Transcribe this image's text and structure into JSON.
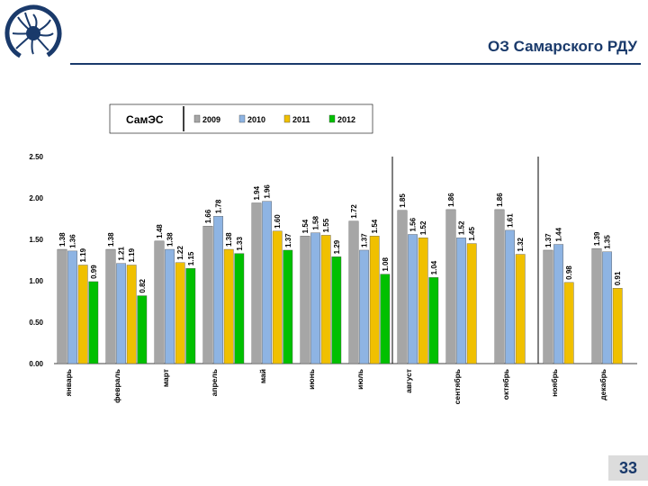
{
  "header": {
    "title": "ОЗ Самарского РДУ"
  },
  "page": {
    "number": "33"
  },
  "colors": {
    "title": "#1a3a6b",
    "s2009": "#a6a6a6",
    "s2010": "#8eb4e3",
    "s2011": "#f0c000",
    "s2012": "#00c000"
  },
  "icons": {
    "logo": "sun-logo-icon"
  },
  "chart_data": {
    "type": "bar",
    "title": "СамЭС",
    "ylim": [
      0,
      2.5
    ],
    "yticks": [
      "0.00",
      "0.50",
      "1.00",
      "1.50",
      "2.00",
      "2.50"
    ],
    "grid": false,
    "legend_position": "top",
    "categories": [
      "январь",
      "февраль",
      "март",
      "апрель",
      "май",
      "июнь",
      "июль",
      "август",
      "сентябрь",
      "октябрь",
      "ноябрь",
      "декабрь"
    ],
    "series": [
      {
        "name": "2009",
        "values": [
          1.38,
          1.38,
          1.48,
          1.66,
          1.94,
          1.54,
          1.72,
          1.85,
          1.86,
          1.86,
          1.37,
          1.39
        ],
        "labels": [
          "1.38",
          "1.38",
          "1.48",
          "1.66",
          "1.94",
          "1.54",
          "1.72",
          "1.85",
          "1.86",
          "1.86",
          "1.37",
          "1.39"
        ]
      },
      {
        "name": "2010",
        "values": [
          1.36,
          1.21,
          1.38,
          1.78,
          1.96,
          1.58,
          1.37,
          1.56,
          1.52,
          1.61,
          1.44,
          1.35
        ],
        "labels": [
          "1.36",
          "1.21",
          "1.38",
          "1.78",
          "1.96",
          "1.58",
          "1.37",
          "1.56",
          "1.52",
          "1.61",
          "1.44",
          "1.35"
        ]
      },
      {
        "name": "2011",
        "values": [
          1.19,
          1.19,
          1.22,
          1.38,
          1.6,
          1.55,
          1.54,
          1.52,
          1.45,
          1.32,
          0.98,
          0.91
        ],
        "labels": [
          "1.19",
          "1.19",
          "1.22",
          "1.38",
          "1.60",
          "1.55",
          "1.54",
          "1.52",
          "1.45",
          "1.32",
          "0.98",
          "0.91"
        ]
      },
      {
        "name": "2012",
        "values": [
          0.99,
          0.82,
          1.15,
          1.33,
          1.37,
          1.29,
          1.08,
          1.04,
          null,
          null,
          null,
          null
        ],
        "labels": [
          "0.99",
          "0.82",
          "1.15",
          "1.33",
          "1.37",
          "1.29",
          "1.08",
          "1.04",
          "",
          "",
          "",
          ""
        ]
      }
    ],
    "separators_after_index": [
      6,
      9
    ]
  }
}
